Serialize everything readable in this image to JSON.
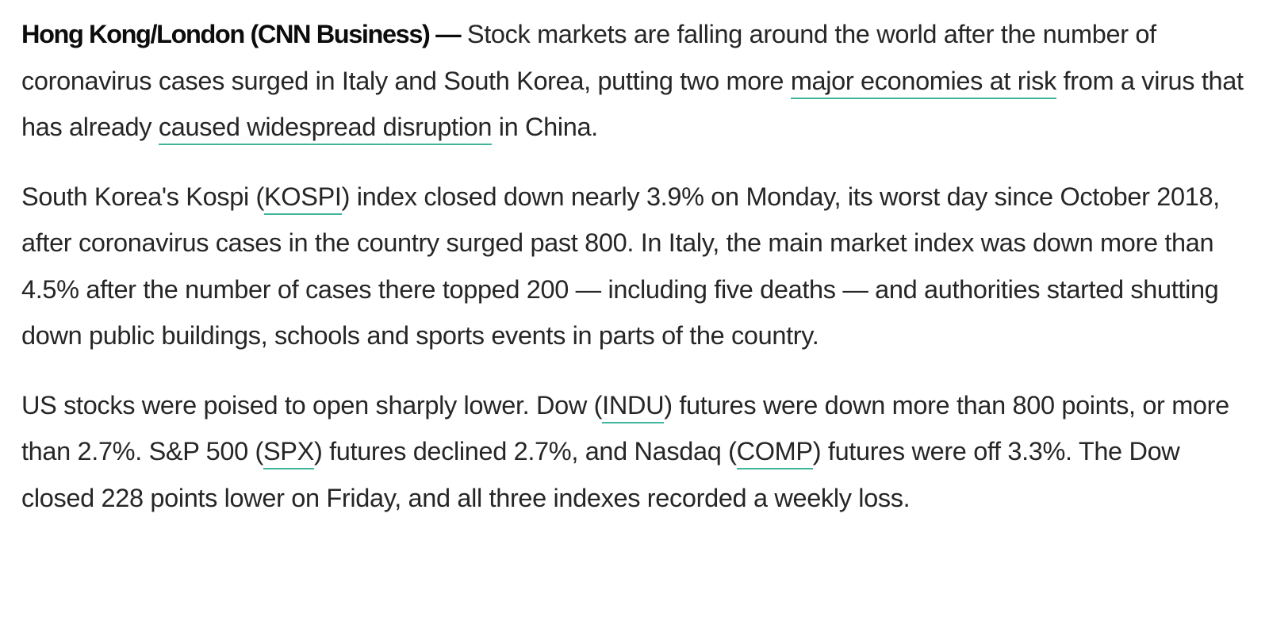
{
  "article": {
    "p1": {
      "dateline": "Hong Kong/London (CNN Business) —",
      "t1": " Stock markets are falling around the world after the number of coronavirus cases surged in Italy and South Korea, putting two more ",
      "link1": "major economies at risk",
      "t2": " from a virus that has already ",
      "link2": "caused widespread disruption",
      "t3": " in China."
    },
    "p2": {
      "t1": "South Korea's Kospi (",
      "link1": "KOSPI",
      "t2": ") index closed down nearly 3.9% on Monday, its worst day since October 2018, after coronavirus cases in the country surged past 800. In Italy, the main market index was down more than 4.5% after the number of cases there topped 200 — including five deaths — and authorities started shutting down public buildings, schools and sports events in parts of the country."
    },
    "p3": {
      "t1": "US stocks were poised to open sharply lower. Dow (",
      "link1": "INDU",
      "t2": ") futures were down more than 800 points, or more than 2.7%. S&P 500 (",
      "link2": "SPX",
      "t3": ") futures declined 2.7%, and Nasdaq (",
      "link3": "COMP",
      "t4": ") futures were off 3.3%. The Dow closed 228 points lower on Friday, and all three indexes recorded a weekly loss."
    }
  },
  "colors": {
    "text": "#262626",
    "link_underline": "#3fb59b",
    "background": "#ffffff"
  }
}
